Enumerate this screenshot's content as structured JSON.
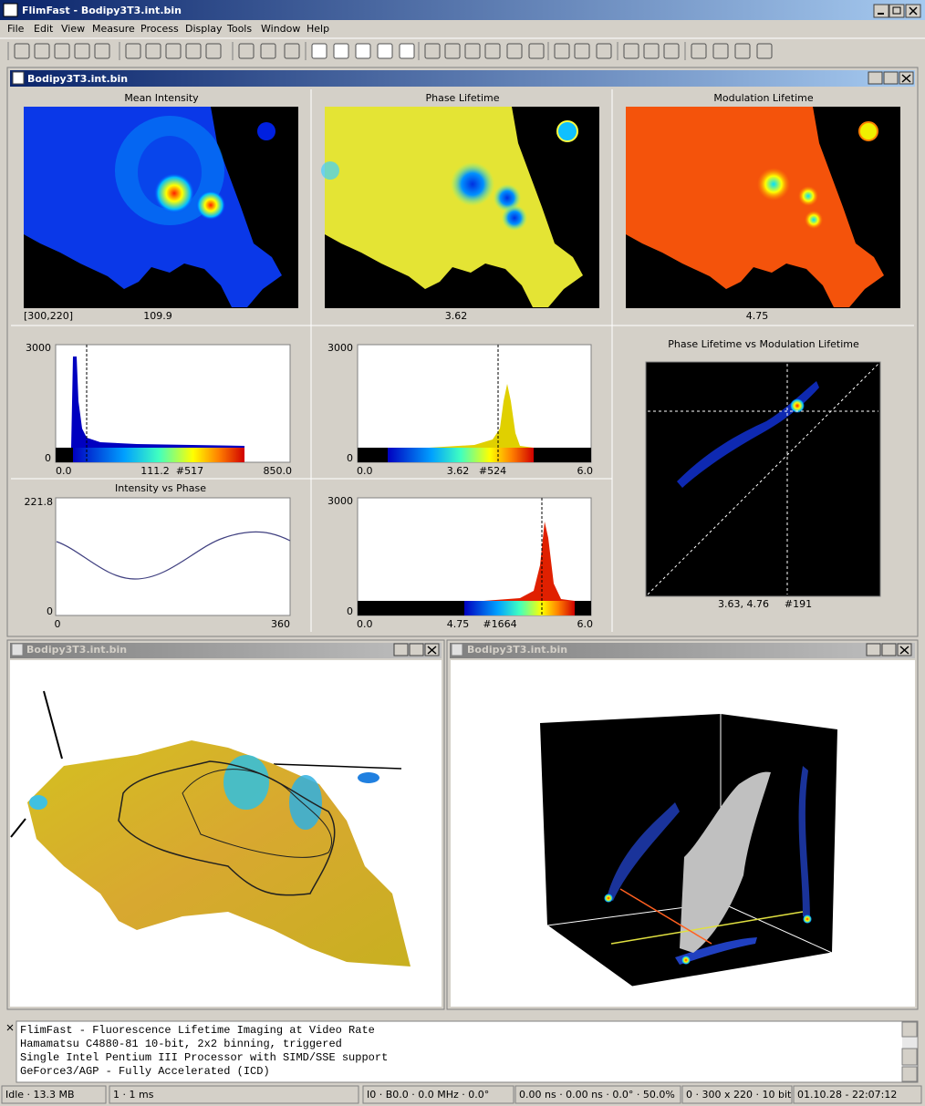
{
  "window": {
    "title": "FlimFast - Bodipy3T3.int.bin"
  },
  "menu": [
    "File",
    "Edit",
    "View",
    "Measure",
    "Process",
    "Display",
    "Tools",
    "Window",
    "Help"
  ],
  "main_window": {
    "title": "Bodipy3T3.int.bin",
    "images": [
      {
        "title": "Mean Intensity",
        "position": "[300,220]",
        "readout": "109.9"
      },
      {
        "title": "Phase Lifetime",
        "readout": "3.62"
      },
      {
        "title": "Modulation Lifetime",
        "readout": "4.75"
      }
    ],
    "histograms": [
      {
        "ymax": "3000",
        "ymin": "0",
        "xmin": "0.0",
        "value": "111.2",
        "count": "#517",
        "xmax": "850.0"
      },
      {
        "ymax": "3000",
        "ymin": "0",
        "xmin": "0.0",
        "value": "3.62",
        "count": "#524",
        "xmax": "6.0"
      },
      {
        "ymax": "3000",
        "ymin": "0",
        "xmin": "0.0",
        "value": "4.75",
        "count": "#1664",
        "xmax": "6.0"
      }
    ],
    "intensity_vs_phase": {
      "title": "Intensity vs Phase",
      "ymax": "221.8",
      "ymin": "0",
      "xmin": "0",
      "xmax": "360"
    },
    "scatter": {
      "title": "Phase Lifetime vs Modulation Lifetime",
      "readout": "3.63, 4.76",
      "count": "#191"
    }
  },
  "child_windows": [
    {
      "title": "Bodipy3T3.int.bin"
    },
    {
      "title": "Bodipy3T3.int.bin"
    }
  ],
  "log": [
    "FlimFast - Fluorescence Lifetime Imaging at Video Rate",
    "Hamamatsu C4880-81 10-bit, 2x2 binning, triggered",
    "Single Intel Pentium III Processor with SIMD/SSE support",
    "GeForce3/AGP - Fully Accelerated (ICD)"
  ],
  "status_bar": [
    "Idle · 13.3 MB",
    "1 · 1 ms",
    "I0 · B0.0 · 0.0 MHz · 0.0°",
    "0.00 ns · 0.00 ns · 0.0° · 50.0%",
    "0 · 300 x 220 · 10 bit",
    "01.10.28 - 22:07:12"
  ]
}
